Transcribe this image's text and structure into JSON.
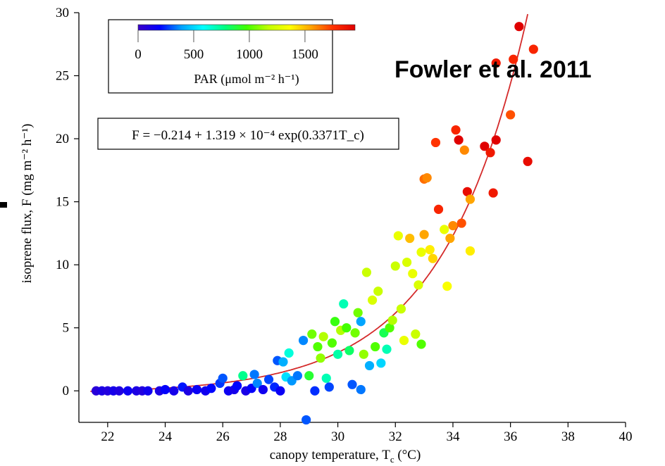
{
  "chart_data": {
    "type": "scatter",
    "citation": "Fowler et al. 2011",
    "xlabel": "canopy temperature, T",
    "xlabel_sub": "c",
    "xlabel_unit": " (°C)",
    "ylabel": "isoprene flux, F (mg m⁻² h⁻¹)",
    "xlim": [
      21,
      40
    ],
    "ylim": [
      -2.5,
      30
    ],
    "xticks": [
      22,
      24,
      26,
      28,
      30,
      32,
      34,
      36,
      38,
      40
    ],
    "yticks": [
      0,
      5,
      10,
      15,
      20,
      25,
      30
    ],
    "grid": false,
    "colorbar": {
      "label": "PAR (μmol m⁻² h⁻¹)",
      "ticks": [
        0,
        500,
        1000,
        1500
      ],
      "range": [
        0,
        1950
      ],
      "colormap": [
        "#3a00c8",
        "#0000ff",
        "#00a0ff",
        "#00ffff",
        "#00ff80",
        "#40ff00",
        "#c0ff00",
        "#ffff00",
        "#ffa000",
        "#ff3000",
        "#e00000"
      ]
    },
    "equation": "F = −0.214 + 1.319 × 10⁻⁴ exp(0.3371T_c)",
    "fit": {
      "a": -0.214,
      "b": 0.0001319,
      "k": 0.3371
    },
    "points": [
      {
        "x": 21.6,
        "y": 0.0,
        "par": 60
      },
      {
        "x": 21.8,
        "y": 0.0,
        "par": 100
      },
      {
        "x": 22.0,
        "y": 0.0,
        "par": 80
      },
      {
        "x": 22.2,
        "y": 0.0,
        "par": 120
      },
      {
        "x": 22.4,
        "y": 0.0,
        "par": 90
      },
      {
        "x": 22.7,
        "y": 0.0,
        "par": 150
      },
      {
        "x": 23.0,
        "y": 0.0,
        "par": 100
      },
      {
        "x": 23.2,
        "y": 0.0,
        "par": 80
      },
      {
        "x": 23.4,
        "y": 0.0,
        "par": 140
      },
      {
        "x": 23.8,
        "y": 0.0,
        "par": 100
      },
      {
        "x": 24.0,
        "y": 0.1,
        "par": 180
      },
      {
        "x": 24.3,
        "y": 0.0,
        "par": 120
      },
      {
        "x": 24.6,
        "y": 0.3,
        "par": 220
      },
      {
        "x": 24.8,
        "y": 0.0,
        "par": 100
      },
      {
        "x": 25.1,
        "y": 0.1,
        "par": 160
      },
      {
        "x": 25.4,
        "y": 0.0,
        "par": 140
      },
      {
        "x": 25.6,
        "y": 0.2,
        "par": 200
      },
      {
        "x": 25.9,
        "y": 0.6,
        "par": 260
      },
      {
        "x": 26.0,
        "y": 1.0,
        "par": 300
      },
      {
        "x": 26.2,
        "y": 0.0,
        "par": 150
      },
      {
        "x": 26.4,
        "y": 0.1,
        "par": 120
      },
      {
        "x": 26.5,
        "y": 0.4,
        "par": 200
      },
      {
        "x": 26.7,
        "y": 1.2,
        "par": 760
      },
      {
        "x": 26.8,
        "y": 0.0,
        "par": 110
      },
      {
        "x": 27.0,
        "y": 0.2,
        "par": 180
      },
      {
        "x": 27.1,
        "y": 1.3,
        "par": 340
      },
      {
        "x": 27.2,
        "y": 0.6,
        "par": 360
      },
      {
        "x": 27.4,
        "y": 0.1,
        "par": 140
      },
      {
        "x": 27.6,
        "y": 0.9,
        "par": 280
      },
      {
        "x": 27.8,
        "y": 0.3,
        "par": 240
      },
      {
        "x": 27.9,
        "y": 2.4,
        "par": 300
      },
      {
        "x": 28.0,
        "y": 0.0,
        "par": 160
      },
      {
        "x": 28.1,
        "y": 2.3,
        "par": 420
      },
      {
        "x": 28.2,
        "y": 1.1,
        "par": 520
      },
      {
        "x": 28.3,
        "y": 3.0,
        "par": 640
      },
      {
        "x": 28.4,
        "y": 0.8,
        "par": 380
      },
      {
        "x": 28.6,
        "y": 1.2,
        "par": 340
      },
      {
        "x": 28.8,
        "y": 4.0,
        "par": 360
      },
      {
        "x": 28.9,
        "y": -2.3,
        "par": 300
      },
      {
        "x": 29.0,
        "y": 1.2,
        "par": 900
      },
      {
        "x": 29.1,
        "y": 4.5,
        "par": 1050
      },
      {
        "x": 29.2,
        "y": 0.0,
        "par": 250
      },
      {
        "x": 29.3,
        "y": 3.5,
        "par": 1000
      },
      {
        "x": 29.4,
        "y": 2.6,
        "par": 1100
      },
      {
        "x": 29.5,
        "y": 4.3,
        "par": 1150
      },
      {
        "x": 29.6,
        "y": 1.0,
        "par": 700
      },
      {
        "x": 29.7,
        "y": 0.3,
        "par": 280
      },
      {
        "x": 29.8,
        "y": 3.8,
        "par": 1000
      },
      {
        "x": 29.9,
        "y": 5.5,
        "par": 950
      },
      {
        "x": 30.0,
        "y": 2.9,
        "par": 720
      },
      {
        "x": 30.1,
        "y": 4.8,
        "par": 1150
      },
      {
        "x": 30.2,
        "y": 6.9,
        "par": 700
      },
      {
        "x": 30.3,
        "y": 5.0,
        "par": 980
      },
      {
        "x": 30.4,
        "y": 3.2,
        "par": 820
      },
      {
        "x": 30.5,
        "y": 0.5,
        "par": 300
      },
      {
        "x": 30.6,
        "y": 4.6,
        "par": 1050
      },
      {
        "x": 30.7,
        "y": 6.2,
        "par": 1050
      },
      {
        "x": 30.8,
        "y": 5.5,
        "par": 400
      },
      {
        "x": 30.8,
        "y": 0.1,
        "par": 340
      },
      {
        "x": 30.9,
        "y": 2.9,
        "par": 1100
      },
      {
        "x": 31.0,
        "y": 9.4,
        "par": 1200
      },
      {
        "x": 31.1,
        "y": 2.0,
        "par": 420
      },
      {
        "x": 31.2,
        "y": 7.2,
        "par": 1250
      },
      {
        "x": 31.3,
        "y": 3.5,
        "par": 1000
      },
      {
        "x": 31.4,
        "y": 7.9,
        "par": 1200
      },
      {
        "x": 31.5,
        "y": 2.2,
        "par": 500
      },
      {
        "x": 31.6,
        "y": 4.6,
        "par": 850
      },
      {
        "x": 31.7,
        "y": 3.3,
        "par": 700
      },
      {
        "x": 31.8,
        "y": 5.0,
        "par": 1000
      },
      {
        "x": 31.9,
        "y": 5.6,
        "par": 1150
      },
      {
        "x": 32.0,
        "y": 9.9,
        "par": 1200
      },
      {
        "x": 32.1,
        "y": 12.3,
        "par": 1300
      },
      {
        "x": 32.2,
        "y": 6.5,
        "par": 1200
      },
      {
        "x": 32.3,
        "y": 4.0,
        "par": 1300
      },
      {
        "x": 32.4,
        "y": 10.2,
        "par": 1250
      },
      {
        "x": 32.5,
        "y": 12.1,
        "par": 1500
      },
      {
        "x": 32.6,
        "y": 9.3,
        "par": 1300
      },
      {
        "x": 32.7,
        "y": 4.5,
        "par": 1200
      },
      {
        "x": 32.8,
        "y": 8.4,
        "par": 1250
      },
      {
        "x": 32.9,
        "y": 11.0,
        "par": 1300
      },
      {
        "x": 33.0,
        "y": 12.4,
        "par": 1550
      },
      {
        "x": 32.9,
        "y": 3.7,
        "par": 1000
      },
      {
        "x": 33.0,
        "y": 16.8,
        "par": 1650
      },
      {
        "x": 33.1,
        "y": 16.9,
        "par": 1600
      },
      {
        "x": 33.2,
        "y": 11.2,
        "par": 1400
      },
      {
        "x": 33.3,
        "y": 10.5,
        "par": 1450
      },
      {
        "x": 33.4,
        "y": 19.7,
        "par": 1750
      },
      {
        "x": 33.5,
        "y": 14.4,
        "par": 1800
      },
      {
        "x": 33.7,
        "y": 12.8,
        "par": 1300
      },
      {
        "x": 33.8,
        "y": 8.3,
        "par": 1350
      },
      {
        "x": 33.9,
        "y": 12.1,
        "par": 1550
      },
      {
        "x": 34.0,
        "y": 13.1,
        "par": 1600
      },
      {
        "x": 34.1,
        "y": 20.7,
        "par": 1800
      },
      {
        "x": 34.2,
        "y": 19.9,
        "par": 1950
      },
      {
        "x": 34.3,
        "y": 13.3,
        "par": 1700
      },
      {
        "x": 34.4,
        "y": 19.1,
        "par": 1600
      },
      {
        "x": 34.5,
        "y": 15.8,
        "par": 1900
      },
      {
        "x": 34.6,
        "y": 11.1,
        "par": 1400
      },
      {
        "x": 34.6,
        "y": 15.2,
        "par": 1550
      },
      {
        "x": 35.1,
        "y": 19.4,
        "par": 1950
      },
      {
        "x": 35.3,
        "y": 18.9,
        "par": 1850
      },
      {
        "x": 35.4,
        "y": 15.7,
        "par": 1850
      },
      {
        "x": 35.5,
        "y": 19.9,
        "par": 1950
      },
      {
        "x": 35.5,
        "y": 26.0,
        "par": 1850
      },
      {
        "x": 36.0,
        "y": 21.9,
        "par": 1700
      },
      {
        "x": 36.1,
        "y": 26.3,
        "par": 1800
      },
      {
        "x": 36.3,
        "y": 28.9,
        "par": 1950
      },
      {
        "x": 36.6,
        "y": 18.2,
        "par": 1900
      },
      {
        "x": 36.8,
        "y": 27.1,
        "par": 1800
      }
    ]
  }
}
